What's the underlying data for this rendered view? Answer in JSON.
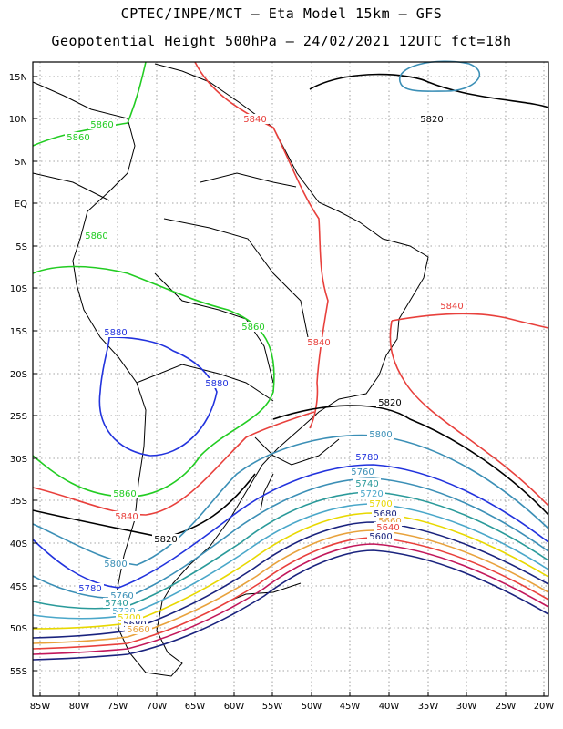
{
  "title_line1": "CPTEC/INPE/MCT –  Eta Model 15km – GFS",
  "title_line2": "Geopotential Height 500hPa – 24/02/2021 12UTC fct=18h",
  "lat_labels": [
    "15N",
    "10N",
    "5N",
    "EQ",
    "5S",
    "10S",
    "15S",
    "20S",
    "25S",
    "30S",
    "35S",
    "40S",
    "45S",
    "50S",
    "55S"
  ],
  "lon_labels": [
    "85W",
    "80W",
    "75W",
    "70W",
    "65W",
    "60W",
    "55W",
    "50W",
    "45W",
    "40W",
    "35W",
    "30W",
    "25W",
    "20W"
  ],
  "contour_labels": [
    {
      "text": "5820",
      "color": "#000000"
    },
    {
      "text": "5840",
      "color": "#e8403c"
    },
    {
      "text": "5860",
      "color": "#22cc22"
    },
    {
      "text": "5860",
      "color": "#22cc22"
    },
    {
      "text": "5860",
      "color": "#22cc22"
    },
    {
      "text": "5880",
      "color": "#2233dd"
    },
    {
      "text": "5880",
      "color": "#2233dd"
    },
    {
      "text": "5840",
      "color": "#e8403c"
    },
    {
      "text": "5840",
      "color": "#e8403c"
    },
    {
      "text": "5860",
      "color": "#22cc22"
    },
    {
      "text": "5820",
      "color": "#000000"
    },
    {
      "text": "5800",
      "color": "#3b8fb6"
    },
    {
      "text": "5780",
      "color": "#2233dd"
    },
    {
      "text": "5760",
      "color": "#3b8fb6"
    },
    {
      "text": "5740",
      "color": "#2a9a9a"
    },
    {
      "text": "5720",
      "color": "#4aa7c9"
    },
    {
      "text": "5700",
      "color": "#e8d800"
    },
    {
      "text": "5680",
      "color": "#1a237e"
    },
    {
      "text": "5660",
      "color": "#e8a23c"
    },
    {
      "text": "5640",
      "color": "#e8403c"
    },
    {
      "text": "5600",
      "color": "#1a237e"
    },
    {
      "text": "5860",
      "color": "#22cc22"
    },
    {
      "text": "5840",
      "color": "#e8403c"
    },
    {
      "text": "5820",
      "color": "#000000"
    },
    {
      "text": "5800",
      "color": "#3b8fb6"
    },
    {
      "text": "5780",
      "color": "#2233dd"
    },
    {
      "text": "5760",
      "color": "#3b8fb6"
    },
    {
      "text": "5740",
      "color": "#2a9a9a"
    },
    {
      "text": "5720",
      "color": "#4aa7c9"
    },
    {
      "text": "5700",
      "color": "#e8d800"
    },
    {
      "text": "5680",
      "color": "#1a237e"
    },
    {
      "text": "5660",
      "color": "#e8a23c"
    }
  ],
  "colors": {
    "c5600": "#1a237e",
    "c5620": "#c2185b",
    "c5640": "#e8403c",
    "c5660": "#e8a23c",
    "c5680": "#1a237e",
    "c5700": "#e8d800",
    "c5720": "#4aa7c9",
    "c5740": "#2a9a9a",
    "c5760": "#3b8fb6",
    "c5780": "#2233dd",
    "c5800": "#3b8fb6",
    "c5820": "#000000",
    "c5840": "#e8403c",
    "c5860": "#22cc22",
    "c5880": "#2233dd"
  }
}
